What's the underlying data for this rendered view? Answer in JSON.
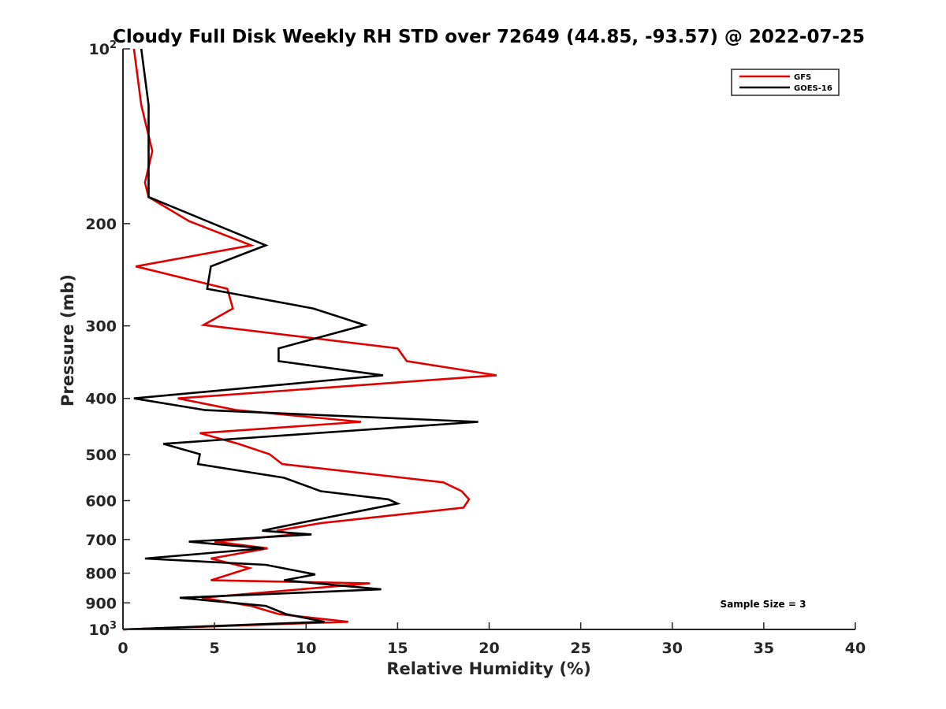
{
  "chart_data": {
    "type": "line",
    "title": "Cloudy Full Disk Weekly RH STD over 72649 (44.85, -93.57) @ 2022-07-25",
    "xlabel": "Relative Humidity (%)",
    "ylabel": "Pressure (mb)",
    "xlim": [
      0,
      40
    ],
    "ylim": [
      100,
      1000
    ],
    "yscale": "log",
    "y_reversed": true,
    "grid": false,
    "legend_position": "top-right",
    "x_ticks": [
      0,
      5,
      10,
      15,
      20,
      25,
      30,
      35,
      40
    ],
    "y_ticks": [
      {
        "value": 100,
        "label": "10",
        "sup": "2"
      },
      {
        "value": 200,
        "label": "200"
      },
      {
        "value": 300,
        "label": "300"
      },
      {
        "value": 400,
        "label": "400"
      },
      {
        "value": 500,
        "label": "500"
      },
      {
        "value": 600,
        "label": "600"
      },
      {
        "value": 700,
        "label": "700"
      },
      {
        "value": 800,
        "label": "800"
      },
      {
        "value": 900,
        "label": "900"
      },
      {
        "value": 1000,
        "label": "10",
        "sup": "3"
      }
    ],
    "annotation": "Sample Size = 3",
    "series": [
      {
        "name": "GFS",
        "color": "#e00000",
        "points": [
          [
            0.6,
            100
          ],
          [
            1.0,
            125
          ],
          [
            1.6,
            150
          ],
          [
            1.2,
            170
          ],
          [
            1.4,
            180
          ],
          [
            3.6,
            198
          ],
          [
            7.0,
            218
          ],
          [
            0.7,
            237
          ],
          [
            5.7,
            259
          ],
          [
            6.0,
            280
          ],
          [
            4.4,
            299
          ],
          [
            15.0,
            328
          ],
          [
            15.5,
            345
          ],
          [
            20.4,
            365
          ],
          [
            3.0,
            400
          ],
          [
            6.2,
            419
          ],
          [
            13.0,
            439
          ],
          [
            4.2,
            459
          ],
          [
            6.3,
            479
          ],
          [
            8.0,
            499
          ],
          [
            8.7,
            519
          ],
          [
            17.5,
            558
          ],
          [
            18.5,
            578
          ],
          [
            18.9,
            597
          ],
          [
            18.6,
            617
          ],
          [
            10.8,
            656
          ],
          [
            8.4,
            676
          ],
          [
            9.4,
            686
          ],
          [
            5.0,
            706
          ],
          [
            7.9,
            725
          ],
          [
            4.8,
            755
          ],
          [
            6.9,
            784
          ],
          [
            4.8,
            823
          ],
          [
            13.5,
            833
          ],
          [
            4.3,
            882
          ],
          [
            7.0,
            911
          ],
          [
            8.5,
            941
          ],
          [
            12.3,
            970
          ],
          [
            0.0,
            1000
          ]
        ]
      },
      {
        "name": "GOES-16",
        "color": "#000000",
        "points": [
          [
            1.0,
            100
          ],
          [
            1.4,
            125
          ],
          [
            1.4,
            150
          ],
          [
            1.4,
            170
          ],
          [
            1.4,
            180
          ],
          [
            7.8,
            218
          ],
          [
            4.8,
            237
          ],
          [
            4.6,
            259
          ],
          [
            10.4,
            280
          ],
          [
            13.2,
            299
          ],
          [
            8.5,
            328
          ],
          [
            8.5,
            345
          ],
          [
            14.2,
            365
          ],
          [
            0.6,
            400
          ],
          [
            4.5,
            419
          ],
          [
            19.4,
            439
          ],
          [
            2.2,
            479
          ],
          [
            4.2,
            499
          ],
          [
            4.1,
            519
          ],
          [
            8.8,
            548
          ],
          [
            10.8,
            578
          ],
          [
            14.5,
            597
          ],
          [
            15.0,
            607
          ],
          [
            9.6,
            656
          ],
          [
            7.6,
            676
          ],
          [
            10.3,
            686
          ],
          [
            3.6,
            706
          ],
          [
            7.7,
            725
          ],
          [
            1.2,
            755
          ],
          [
            7.8,
            774
          ],
          [
            10.5,
            804
          ],
          [
            8.8,
            823
          ],
          [
            14.1,
            853
          ],
          [
            3.1,
            882
          ],
          [
            7.8,
            911
          ],
          [
            8.9,
            941
          ],
          [
            11.0,
            970
          ],
          [
            0.0,
            1000
          ]
        ]
      }
    ]
  }
}
